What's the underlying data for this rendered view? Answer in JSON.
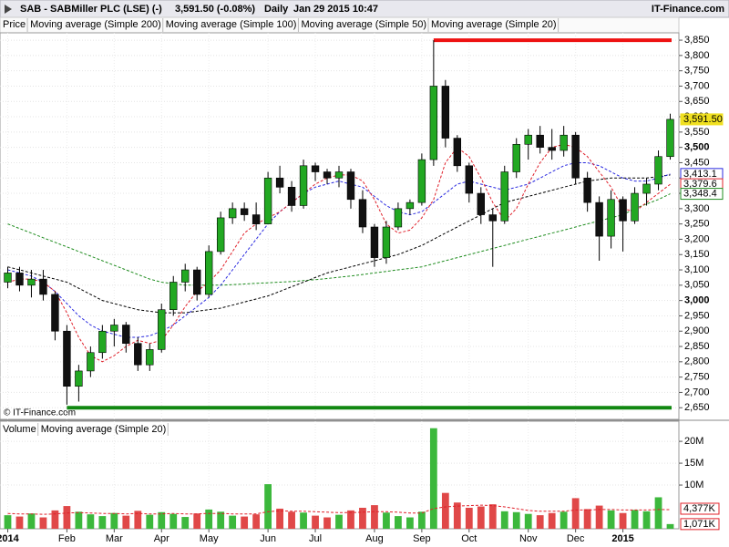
{
  "chart_data": {
    "type": "candlestick",
    "header": {
      "symbol": "SAB - SABMiller PLC (LSE) (-)",
      "quote": "3,591.50 (-0.08%)",
      "period": "Daily",
      "date": "Jan 29 2015 10:47",
      "brand": "IT-Finance.com"
    },
    "price_legend": "Price",
    "copyright": "© IT-Finance.com",
    "categories": [
      "2014",
      null,
      null,
      null,
      null,
      "Feb",
      null,
      null,
      null,
      "Mar",
      null,
      null,
      null,
      "Apr",
      null,
      null,
      null,
      "May",
      null,
      null,
      null,
      null,
      "Jun",
      null,
      null,
      null,
      "Jul",
      null,
      null,
      null,
      null,
      "Aug",
      null,
      null,
      null,
      "Sep",
      null,
      null,
      null,
      "Oct",
      null,
      null,
      null,
      null,
      "Nov",
      null,
      null,
      null,
      "Dec",
      null,
      null,
      null,
      "2015",
      null,
      null,
      null,
      null
    ],
    "up_color": "#22a822",
    "down_color": "#111111",
    "ohlc": [
      [
        3060,
        3110,
        3040,
        3090
      ],
      [
        3090,
        3110,
        3030,
        3050
      ],
      [
        3050,
        3100,
        3010,
        3070
      ],
      [
        3070,
        3100,
        3000,
        3020
      ],
      [
        3020,
        3030,
        2870,
        2900
      ],
      [
        2900,
        2920,
        2660,
        2720
      ],
      [
        2720,
        2790,
        2670,
        2770
      ],
      [
        2770,
        2850,
        2750,
        2830
      ],
      [
        2830,
        2920,
        2810,
        2900
      ],
      [
        2900,
        2940,
        2850,
        2920
      ],
      [
        2920,
        2930,
        2830,
        2860
      ],
      [
        2860,
        2880,
        2770,
        2790
      ],
      [
        2790,
        2860,
        2770,
        2840
      ],
      [
        2840,
        2990,
        2830,
        2970
      ],
      [
        2970,
        3080,
        2950,
        3060
      ],
      [
        3060,
        3120,
        3030,
        3100
      ],
      [
        3100,
        3110,
        3000,
        3020
      ],
      [
        3020,
        3180,
        3010,
        3160
      ],
      [
        3160,
        3290,
        3150,
        3270
      ],
      [
        3270,
        3320,
        3250,
        3300
      ],
      [
        3300,
        3320,
        3260,
        3280
      ],
      [
        3280,
        3320,
        3230,
        3250
      ],
      [
        3250,
        3420,
        3250,
        3400
      ],
      [
        3400,
        3440,
        3350,
        3370
      ],
      [
        3370,
        3390,
        3290,
        3310
      ],
      [
        3310,
        3460,
        3300,
        3440
      ],
      [
        3440,
        3450,
        3390,
        3420
      ],
      [
        3420,
        3430,
        3380,
        3400
      ],
      [
        3400,
        3440,
        3370,
        3420
      ],
      [
        3420,
        3430,
        3300,
        3330
      ],
      [
        3330,
        3360,
        3220,
        3240
      ],
      [
        3240,
        3250,
        3110,
        3140
      ],
      [
        3140,
        3260,
        3120,
        3240
      ],
      [
        3240,
        3320,
        3230,
        3300
      ],
      [
        3300,
        3330,
        3280,
        3320
      ],
      [
        3320,
        3480,
        3310,
        3460
      ],
      [
        3460,
        3850,
        3440,
        3700
      ],
      [
        3700,
        3720,
        3500,
        3530
      ],
      [
        3530,
        3540,
        3420,
        3440
      ],
      [
        3440,
        3450,
        3320,
        3350
      ],
      [
        3350,
        3370,
        3250,
        3280
      ],
      [
        3280,
        3300,
        3110,
        3260
      ],
      [
        3260,
        3440,
        3250,
        3420
      ],
      [
        3420,
        3530,
        3400,
        3510
      ],
      [
        3510,
        3560,
        3460,
        3540
      ],
      [
        3540,
        3570,
        3480,
        3500
      ],
      [
        3500,
        3560,
        3460,
        3490
      ],
      [
        3490,
        3570,
        3470,
        3540
      ],
      [
        3540,
        3550,
        3380,
        3400
      ],
      [
        3400,
        3420,
        3290,
        3320
      ],
      [
        3320,
        3340,
        3130,
        3210
      ],
      [
        3210,
        3360,
        3170,
        3330
      ],
      [
        3330,
        3340,
        3160,
        3260
      ],
      [
        3260,
        3370,
        3250,
        3350
      ],
      [
        3350,
        3400,
        3310,
        3380
      ],
      [
        3380,
        3490,
        3360,
        3470
      ],
      [
        3470,
        3610,
        3460,
        3591.5
      ]
    ],
    "series": [
      {
        "name": "Moving average (Simple 200)",
        "color": "#1e8c1e",
        "values": [
          3250,
          3235,
          3220,
          3205,
          3190,
          3175,
          3160,
          3145,
          3130,
          3115,
          3100,
          3085,
          3070,
          3060,
          3055,
          3050,
          3050,
          3050,
          3050,
          3052,
          3054,
          3056,
          3058,
          3060,
          3062,
          3065,
          3068,
          3072,
          3076,
          3080,
          3085,
          3090,
          3095,
          3100,
          3105,
          3110,
          3120,
          3130,
          3140,
          3150,
          3160,
          3170,
          3180,
          3190,
          3200,
          3210,
          3220,
          3230,
          3240,
          3250,
          3260,
          3270,
          3280,
          3300,
          3315,
          3330,
          3348.4
        ]
      },
      {
        "name": "Moving average (Simple 100)",
        "color": "#000000",
        "values": [
          3110,
          3100,
          3090,
          3080,
          3070,
          3060,
          3040,
          3020,
          3000,
          2990,
          2980,
          2970,
          2965,
          2960,
          2960,
          2960,
          2965,
          2970,
          2975,
          2985,
          2995,
          3005,
          3015,
          3030,
          3045,
          3060,
          3075,
          3090,
          3100,
          3110,
          3120,
          3130,
          3140,
          3150,
          3165,
          3180,
          3200,
          3220,
          3240,
          3260,
          3280,
          3300,
          3320,
          3330,
          3340,
          3350,
          3360,
          3370,
          3380,
          3390,
          3395,
          3400,
          3400,
          3400,
          3400,
          3405,
          3410
        ]
      },
      {
        "name": "Moving average (Simple 50)",
        "color": "#2a2ae0",
        "values": [
          3100,
          3090,
          3080,
          3060,
          3030,
          2990,
          2950,
          2920,
          2900,
          2890,
          2880,
          2880,
          2885,
          2900,
          2920,
          2950,
          2980,
          3010,
          3050,
          3100,
          3150,
          3200,
          3250,
          3290,
          3320,
          3350,
          3370,
          3380,
          3390,
          3380,
          3370,
          3340,
          3310,
          3290,
          3280,
          3290,
          3320,
          3350,
          3380,
          3390,
          3380,
          3370,
          3360,
          3370,
          3380,
          3400,
          3420,
          3440,
          3450,
          3450,
          3440,
          3420,
          3400,
          3390,
          3390,
          3400,
          3413.1
        ]
      },
      {
        "name": "Moving average (Simple 20)",
        "color": "#e0202a",
        "values": [
          3060,
          3070,
          3070,
          3060,
          3030,
          2960,
          2880,
          2820,
          2800,
          2820,
          2850,
          2870,
          2860,
          2870,
          2920,
          2980,
          3030,
          3060,
          3100,
          3160,
          3220,
          3250,
          3270,
          3290,
          3320,
          3350,
          3380,
          3400,
          3410,
          3410,
          3390,
          3330,
          3250,
          3220,
          3230,
          3270,
          3330,
          3450,
          3500,
          3470,
          3400,
          3320,
          3260,
          3300,
          3380,
          3450,
          3500,
          3510,
          3500,
          3470,
          3420,
          3370,
          3300,
          3290,
          3320,
          3350,
          3379.6
        ]
      }
    ],
    "price_tags": [
      {
        "value": 3591.5,
        "label": "3,591.50",
        "color": "#f0e020"
      },
      {
        "value": 3413.1,
        "label": "3,413.1",
        "color": "#2a2ae0"
      },
      {
        "value": 3379.6,
        "label": "3,379.6",
        "color": "#e0202a"
      },
      {
        "value": 3348.4,
        "label": "3,348.4",
        "color": "#1e8c1e"
      }
    ],
    "levels": [
      {
        "value": 3850,
        "color": "#ee1111",
        "start": 36
      },
      {
        "value": 2650,
        "color": "#118811",
        "start": 5
      }
    ],
    "ylim": [
      2612,
      3874
    ],
    "yticks": [
      {
        "value": 2650,
        "label": "2,650"
      },
      {
        "value": 2700,
        "label": "2,700"
      },
      {
        "value": 2750,
        "label": "2,750"
      },
      {
        "value": 2800,
        "label": "2,800"
      },
      {
        "value": 2850,
        "label": "2,850"
      },
      {
        "value": 2900,
        "label": "2,900"
      },
      {
        "value": 2950,
        "label": "2,950"
      },
      {
        "value": 3000,
        "label": "3,000",
        "bold": true
      },
      {
        "value": 3050,
        "label": "3,050"
      },
      {
        "value": 3100,
        "label": "3,100"
      },
      {
        "value": 3150,
        "label": "3,150"
      },
      {
        "value": 3200,
        "label": "3,200"
      },
      {
        "value": 3250,
        "label": "3,250"
      },
      {
        "value": 3300,
        "label": "3,300"
      },
      {
        "value": 3350,
        "label": "3,350"
      },
      {
        "value": 3400,
        "label": "3,400"
      },
      {
        "value": 3450,
        "label": "3,450"
      },
      {
        "value": 3500,
        "label": "3,500",
        "bold": true
      },
      {
        "value": 3550,
        "label": "3,550"
      },
      {
        "value": 3600,
        "label": "3,600"
      },
      {
        "value": 3650,
        "label": "3,650"
      },
      {
        "value": 3700,
        "label": "3,700"
      },
      {
        "value": 3750,
        "label": "3,750"
      },
      {
        "value": 3800,
        "label": "3,800"
      },
      {
        "value": 3850,
        "label": "3,850"
      }
    ],
    "volume": {
      "name": "Volume",
      "values": [
        3100000,
        2800000,
        3500000,
        2600000,
        4200000,
        5200000,
        3900000,
        3300000,
        2900000,
        3600000,
        3000000,
        4100000,
        3200000,
        3800000,
        3400000,
        2700000,
        3500000,
        4400000,
        3900000,
        3000000,
        2800000,
        3300000,
        10200000,
        4600000,
        3900000,
        3700000,
        3000000,
        2600000,
        3200000,
        4200000,
        4800000,
        5400000,
        3700000,
        2900000,
        2600000,
        3900000,
        23000000,
        8200000,
        6000000,
        4800000,
        5100000,
        5600000,
        4000000,
        3800000,
        3400000,
        3100000,
        3600000,
        3900000,
        7000000,
        4500000,
        5300000,
        4200000,
        3600000,
        4300000,
        4000000,
        7200000,
        1071000
      ],
      "value_labels_last": "1,071K",
      "ma": {
        "name": "Moving average (Simple 20)",
        "color": "#e0202a",
        "values": [
          3500000,
          3400000,
          3400000,
          3300000,
          3400000,
          3600000,
          3700000,
          3600000,
          3500000,
          3500000,
          3400000,
          3500000,
          3400000,
          3400000,
          3500000,
          3400000,
          3400000,
          3500000,
          3500000,
          3400000,
          3400000,
          3400000,
          3900000,
          4100000,
          4000000,
          4000000,
          3900000,
          3800000,
          3700000,
          3700000,
          3800000,
          3900000,
          3900000,
          3800000,
          3600000,
          3600000,
          4600000,
          5000000,
          5200000,
          5300000,
          5400000,
          5300000,
          5000000,
          4600000,
          4200000,
          4000000,
          4000000,
          4000000,
          4300000,
          4300000,
          4400000,
          4400000,
          4300000,
          4300000,
          4300000,
          4400000,
          4377000
        ],
        "last_label": "4,377K"
      },
      "ylim": [
        0,
        24400000
      ],
      "yticks": [
        {
          "value": 10000000,
          "label": "10M"
        },
        {
          "value": 15000000,
          "label": "15M"
        },
        {
          "value": 20000000,
          "label": "20M"
        }
      ]
    },
    "grid": true
  }
}
